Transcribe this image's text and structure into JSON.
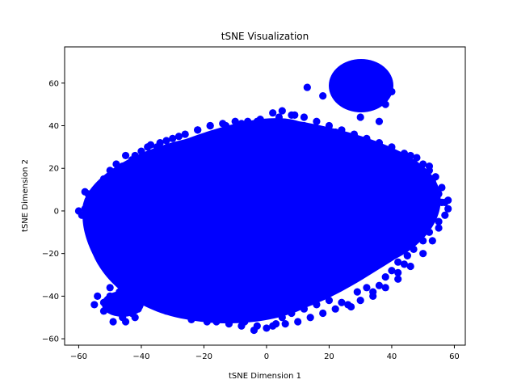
{
  "chart_data": {
    "type": "scatter",
    "title": "tSNE Visualization",
    "xlabel": "tSNE Dimension 1",
    "ylabel": "tSNE Dimension 2",
    "xlim": [
      -64.5,
      63.5
    ],
    "ylim": [
      -63,
      77
    ],
    "xticks": [
      -60,
      -40,
      -20,
      0,
      20,
      40,
      60
    ],
    "yticks": [
      -60,
      -40,
      -20,
      0,
      20,
      40,
      60
    ],
    "grid": false,
    "marker_color": "#0000ff",
    "series": [
      {
        "points": [
          [
            -58,
            1
          ],
          [
            -57,
            8
          ],
          [
            -56,
            -9
          ],
          [
            -55,
            -17
          ],
          [
            -52,
            15
          ],
          [
            -50,
            19
          ],
          [
            -48,
            22
          ],
          [
            -45,
            26
          ],
          [
            -43,
            24
          ],
          [
            -40,
            28
          ],
          [
            -37,
            31
          ],
          [
            -35,
            30
          ],
          [
            -32,
            33
          ],
          [
            -28,
            35
          ],
          [
            -22,
            38
          ],
          [
            -18,
            40
          ],
          [
            -13,
            40
          ],
          [
            -8,
            41
          ],
          [
            -3,
            42
          ],
          [
            2,
            46
          ],
          [
            5,
            47
          ],
          [
            9,
            45
          ],
          [
            12,
            40
          ],
          [
            17,
            38
          ],
          [
            22,
            37
          ],
          [
            26,
            35
          ],
          [
            30,
            33
          ],
          [
            34,
            30
          ],
          [
            38,
            28
          ],
          [
            42,
            24
          ],
          [
            46,
            26
          ],
          [
            50,
            22
          ],
          [
            52,
            19
          ],
          [
            53,
            14
          ],
          [
            55,
            8
          ],
          [
            57,
            4
          ],
          [
            58,
            1
          ],
          [
            55,
            -5
          ],
          [
            52,
            -10
          ],
          [
            50,
            -14
          ],
          [
            47,
            -18
          ],
          [
            45,
            -21
          ],
          [
            42,
            -24
          ],
          [
            40,
            -28
          ],
          [
            38,
            -31
          ],
          [
            36,
            -35
          ],
          [
            34,
            -38
          ],
          [
            32,
            -36
          ],
          [
            29,
            -38
          ],
          [
            27,
            -45
          ],
          [
            24,
            -43
          ],
          [
            20,
            -42
          ],
          [
            16,
            -44
          ],
          [
            12,
            -46
          ],
          [
            8,
            -48
          ],
          [
            5,
            -50
          ],
          [
            3,
            -53
          ],
          [
            0,
            -55
          ],
          [
            -3,
            -54
          ],
          [
            -7,
            -52
          ],
          [
            -11,
            -51
          ],
          [
            -15,
            -50
          ],
          [
            -19,
            -52
          ],
          [
            -24,
            -48
          ],
          [
            -28,
            -46
          ],
          [
            -32,
            -44
          ],
          [
            -36,
            -41
          ],
          [
            -40,
            -37
          ],
          [
            -44,
            -33
          ],
          [
            -47,
            -26
          ],
          [
            -50,
            -20
          ],
          [
            -53,
            -18
          ],
          [
            -55,
            -12
          ],
          [
            -57,
            -4
          ],
          [
            -50,
            -40
          ],
          [
            -52,
            -43
          ],
          [
            -48,
            -47
          ],
          [
            -46,
            -50
          ],
          [
            -43,
            -48
          ],
          [
            -41,
            -46
          ],
          [
            -47,
            -38
          ],
          [
            -44,
            -42
          ],
          [
            13,
            58
          ],
          [
            18,
            54
          ],
          [
            38,
            50
          ],
          [
            36,
            42
          ],
          [
            30,
            44
          ],
          [
            24,
            63
          ],
          [
            28,
            68
          ],
          [
            33,
            69
          ],
          [
            38,
            64
          ],
          [
            40,
            56
          ],
          [
            27,
            52
          ],
          [
            35,
            53
          ],
          [
            -60,
            0
          ],
          [
            -59,
            -2
          ],
          [
            -58,
            9
          ],
          [
            -57,
            5
          ],
          [
            -56,
            -13
          ],
          [
            -54,
            10
          ],
          [
            -53,
            -21
          ],
          [
            -50,
            12
          ],
          [
            -49,
            -30
          ],
          [
            -46,
            21
          ],
          [
            -44,
            -37
          ],
          [
            -42,
            26
          ],
          [
            -40,
            -41
          ],
          [
            -38,
            30
          ],
          [
            -36,
            -44
          ],
          [
            -34,
            32
          ],
          [
            -32,
            -47
          ],
          [
            -30,
            34
          ],
          [
            -28,
            -48
          ],
          [
            -26,
            36
          ],
          [
            -24,
            -51
          ],
          [
            -22,
            38
          ],
          [
            -20,
            -50
          ],
          [
            -18,
            40
          ],
          [
            -16,
            -52
          ],
          [
            -14,
            41
          ],
          [
            -12,
            -53
          ],
          [
            -10,
            42
          ],
          [
            -8,
            -54
          ],
          [
            -6,
            42
          ],
          [
            -4,
            -56
          ],
          [
            -2,
            43
          ],
          [
            2,
            -54
          ],
          [
            4,
            44
          ],
          [
            6,
            -53
          ],
          [
            8,
            45
          ],
          [
            10,
            -52
          ],
          [
            12,
            44
          ],
          [
            14,
            -50
          ],
          [
            16,
            42
          ],
          [
            18,
            -48
          ],
          [
            20,
            40
          ],
          [
            22,
            -46
          ],
          [
            24,
            38
          ],
          [
            26,
            -44
          ],
          [
            28,
            36
          ],
          [
            30,
            -42
          ],
          [
            32,
            34
          ],
          [
            34,
            -40
          ],
          [
            36,
            32
          ],
          [
            38,
            -36
          ],
          [
            40,
            30
          ],
          [
            42,
            -32
          ],
          [
            44,
            27
          ],
          [
            46,
            -26
          ],
          [
            48,
            25
          ],
          [
            50,
            -20
          ],
          [
            52,
            21
          ],
          [
            53,
            -14
          ],
          [
            54,
            16
          ],
          [
            55,
            -8
          ],
          [
            56,
            11
          ],
          [
            57,
            -2
          ],
          [
            58,
            5
          ],
          [
            56,
            4
          ],
          [
            -52,
            -47
          ],
          [
            -49,
            -52
          ],
          [
            -45,
            -52
          ],
          [
            -42,
            -50
          ],
          [
            -55,
            -44
          ],
          [
            -54,
            -40
          ],
          [
            -50,
            -36
          ],
          [
            -46,
            -35
          ],
          [
            45,
            -21
          ],
          [
            44,
            -25
          ],
          [
            42,
            -29
          ]
        ]
      },
      {
        "points": [
          [
            -30,
            -10
          ],
          [
            -20,
            5
          ],
          [
            -10,
            -15
          ],
          [
            0,
            10
          ],
          [
            10,
            -20
          ],
          [
            20,
            0
          ],
          [
            30,
            15
          ],
          [
            -25,
            20
          ],
          [
            15,
            25
          ],
          [
            -5,
            30
          ],
          [
            35,
            -10
          ],
          [
            -35,
            -25
          ],
          [
            5,
            -35
          ],
          [
            25,
            -30
          ],
          [
            -15,
            -40
          ],
          [
            40,
            5
          ],
          [
            -40,
            10
          ],
          [
            0,
            -5
          ],
          [
            45,
            10
          ],
          [
            -45,
            -5
          ]
        ]
      },
      {
        "points": [
          [
            31,
            60
          ],
          [
            27,
            58
          ],
          [
            35,
            62
          ],
          [
            29,
            63
          ],
          [
            33,
            56
          ],
          [
            25,
            60
          ],
          [
            37,
            59
          ],
          [
            30,
            66
          ],
          [
            32,
            54
          ],
          [
            28,
            54
          ],
          [
            34,
            66
          ],
          [
            22,
            62
          ],
          [
            39,
            61
          ],
          [
            26,
            65
          ],
          [
            36,
            55
          ]
        ]
      }
    ]
  }
}
